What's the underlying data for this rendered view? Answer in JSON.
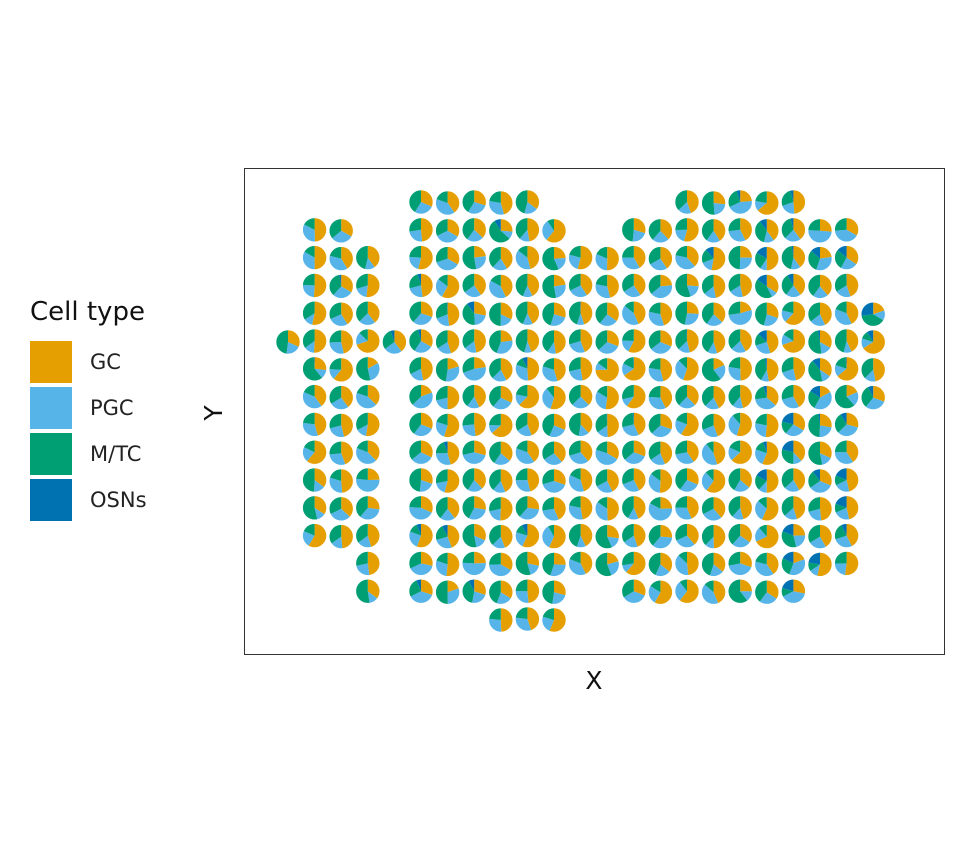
{
  "chart_data": {
    "type": "scatter-pie",
    "xlabel": "X",
    "ylabel": "Y",
    "grid": false,
    "legend": {
      "title": "Cell type",
      "placement": "left",
      "entries": [
        {
          "name": "GC",
          "color": "#E69F00"
        },
        {
          "name": "PGC",
          "color": "#56B4E9"
        },
        {
          "name": "M/TC",
          "color": "#009E73"
        },
        {
          "name": "OSNs",
          "color": "#0072B2"
        }
      ]
    },
    "spot_grid": {
      "columns": 23,
      "rows": 16,
      "rows_of_column": [
        "",
        "1-12",
        "1-12",
        "2-14",
        "",
        "0-14",
        "0-14",
        "1-14",
        "1-15",
        "1-15",
        "1-14",
        "2-13",
        "2-13",
        "1-14",
        "1-14",
        "0-14",
        "0-14",
        "0-14",
        "0-14",
        "0-14",
        "1-13",
        "1-13",
        "4-7"
      ],
      "extra_spots": [
        [
          0,
          5
        ],
        [
          4,
          5
        ],
        [
          10,
          15
        ],
        [
          15,
          0
        ],
        [
          16,
          0
        ],
        [
          9,
          0
        ],
        [
          8,
          0
        ],
        [
          7,
          0
        ],
        [
          6,
          0
        ]
      ],
      "composition_order": [
        "GC",
        "PGC",
        "M/TC",
        "OSNs"
      ]
    }
  }
}
